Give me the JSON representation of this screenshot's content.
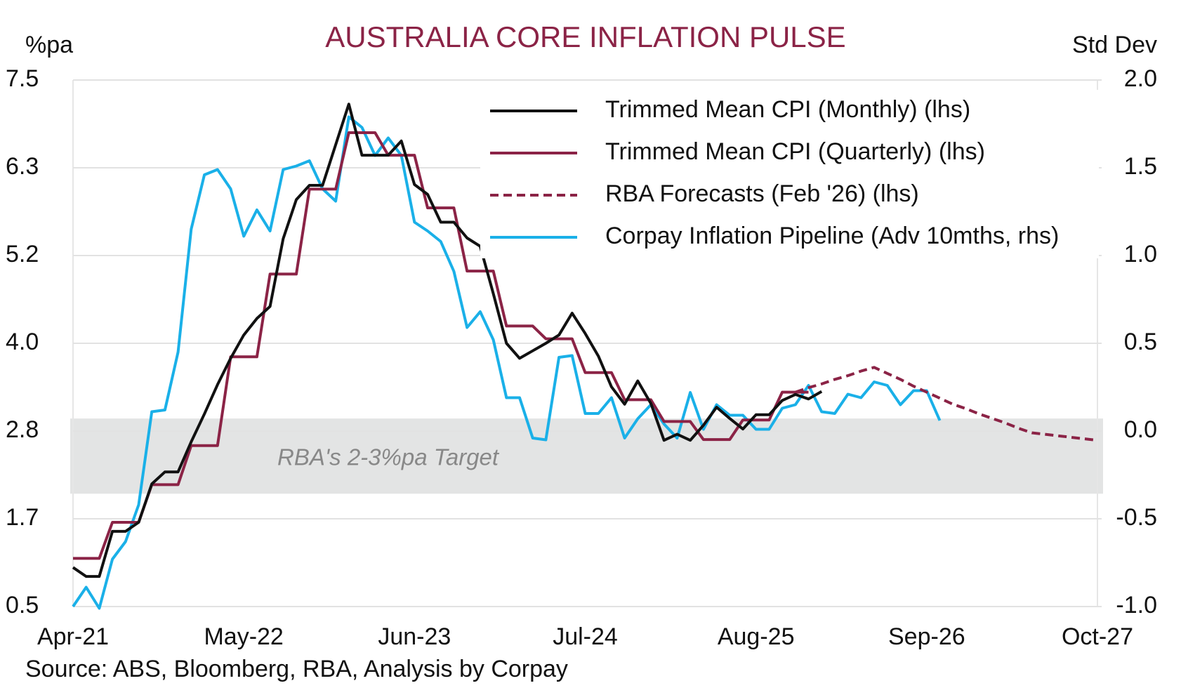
{
  "chart_data": {
    "type": "line",
    "title": "AUSTRALIA CORE INFLATION PULSE",
    "y_label": "%pa",
    "y2_label": "Std Dev",
    "source": "Source: ABS, Bloomberg, RBA, Analysis by Corpay",
    "annotation": "RBA's 2-3%pa Target",
    "target_band": [
      2,
      3
    ],
    "legend": "upper right",
    "grid": true,
    "categories": [
      "Apr-21",
      null,
      null,
      null,
      null,
      null,
      null,
      null,
      null,
      null,
      null,
      null,
      null,
      "May-22",
      null,
      null,
      null,
      null,
      null,
      null,
      null,
      null,
      null,
      null,
      null,
      null,
      "Jun-23",
      null,
      null,
      null,
      null,
      null,
      null,
      null,
      null,
      null,
      null,
      null,
      null,
      "Jul-24",
      null,
      null,
      null,
      null,
      null,
      null,
      null,
      null,
      null,
      null,
      null,
      null,
      "Aug-25",
      null,
      null,
      null,
      null,
      null,
      null,
      null,
      null,
      null,
      null,
      null,
      null,
      "Sep-26",
      null,
      null,
      null,
      null,
      null,
      null,
      null,
      null,
      null,
      null,
      null,
      null,
      "Oct-27"
    ],
    "ylim": [
      0.5,
      7.5
    ],
    "yticks": [
      0.5,
      {
        "value": 1.6667,
        "label": "1.7"
      },
      {
        "value": 2.8333,
        "label": "2.8"
      },
      {
        "value": 4,
        "label": "4.0"
      },
      {
        "value": 5.1667,
        "label": "5.2"
      },
      {
        "value": 6.3333,
        "label": "6.3"
      },
      7.5
    ],
    "y2lim": [
      -1,
      2
    ],
    "y2ticks": [
      {
        "value": -1,
        "label": "-1.0"
      },
      -0.5,
      {
        "value": 0,
        "label": "0.0"
      },
      0.5,
      {
        "value": 1,
        "label": "1.0"
      },
      1.5,
      {
        "value": 2,
        "label": "2.0"
      }
    ],
    "series": [
      {
        "name": "Trimmed Mean CPI (Monthly) (lhs)",
        "color": "#111111",
        "dashed": false,
        "values": [
          1.02,
          0.9,
          0.9,
          1.5,
          1.5,
          1.62,
          2.13,
          2.29,
          2.29,
          2.69,
          3.06,
          3.45,
          3.8,
          4.11,
          4.33,
          4.49,
          5.39,
          5.91,
          6.1,
          6.1,
          6.64,
          7.18,
          6.5,
          6.5,
          6.5,
          6.69,
          6.11,
          5.98,
          5.61,
          5.61,
          5.4,
          5.29,
          4.66,
          4.0,
          3.8,
          3.9,
          4.0,
          4.11,
          4.4,
          4.13,
          3.83,
          3.42,
          3.19,
          3.5,
          3.2,
          2.71,
          2.79,
          2.71,
          2.91,
          3.15,
          3.0,
          2.86,
          3.05,
          3.05,
          3.24,
          3.32,
          3.26,
          3.36,
          null,
          null,
          null,
          null,
          null,
          null,
          null,
          null,
          null,
          null,
          null,
          null,
          null,
          null,
          null,
          null,
          null,
          null,
          null,
          null,
          null
        ]
      },
      {
        "name": "Trimmed Mean CPI (Quarterly) (lhs)",
        "color": "#8b2346",
        "dashed": false,
        "values": [
          1.14,
          1.14,
          1.14,
          1.62,
          1.62,
          1.62,
          2.12,
          2.12,
          2.12,
          2.64,
          2.64,
          2.64,
          3.82,
          3.82,
          3.82,
          4.92,
          4.92,
          4.92,
          6.05,
          6.05,
          6.05,
          6.8,
          6.8,
          6.8,
          6.5,
          6.5,
          6.5,
          5.8,
          5.8,
          5.8,
          4.96,
          4.96,
          4.96,
          4.23,
          4.23,
          4.23,
          4.06,
          4.06,
          4.06,
          3.61,
          3.61,
          3.61,
          3.25,
          3.25,
          3.25,
          2.96,
          2.96,
          2.96,
          2.72,
          2.72,
          2.72,
          2.98,
          2.98,
          2.98,
          3.35,
          3.35,
          3.35,
          null,
          null,
          null,
          null,
          null,
          null,
          null,
          null,
          null,
          null,
          null,
          null,
          null,
          null,
          null,
          null,
          null,
          null,
          null,
          null,
          null,
          null
        ]
      },
      {
        "name": "RBA Forecasts (Feb '26) (lhs)",
        "color": "#8b2346",
        "dashed": true,
        "values": [
          null,
          null,
          null,
          null,
          null,
          null,
          null,
          null,
          null,
          null,
          null,
          null,
          null,
          null,
          null,
          null,
          null,
          null,
          null,
          null,
          null,
          null,
          null,
          null,
          null,
          null,
          null,
          null,
          null,
          null,
          null,
          null,
          null,
          null,
          null,
          null,
          null,
          null,
          null,
          null,
          null,
          null,
          null,
          null,
          null,
          null,
          null,
          null,
          null,
          null,
          null,
          null,
          null,
          null,
          null,
          3.35,
          3.41,
          3.46,
          3.52,
          3.57,
          3.63,
          3.68,
          3.6,
          3.52,
          3.43,
          3.35,
          3.27,
          3.19,
          3.13,
          3.06,
          3.0,
          2.94,
          2.87,
          2.81,
          2.79,
          2.77,
          2.75,
          2.73,
          2.71
        ]
      },
      {
        "name": "Corpay Inflation Pipeline (Adv 10mths, rhs)",
        "color": "#1ab0e8",
        "dashed": false,
        "axis": "y2",
        "values": [
          -1.0,
          -0.89,
          -1.01,
          -0.73,
          -0.63,
          -0.42,
          0.11,
          0.12,
          0.45,
          1.15,
          1.46,
          1.49,
          1.38,
          1.11,
          1.26,
          1.14,
          1.49,
          1.51,
          1.54,
          1.38,
          1.31,
          1.79,
          1.73,
          1.57,
          1.67,
          1.57,
          1.19,
          1.14,
          1.08,
          0.91,
          0.59,
          0.68,
          0.52,
          0.19,
          0.19,
          -0.04,
          -0.05,
          0.42,
          0.43,
          0.1,
          0.1,
          0.19,
          -0.04,
          0.07,
          0.15,
          0.04,
          -0.04,
          0.22,
          0.01,
          0.15,
          0.09,
          0.09,
          0.01,
          0.01,
          0.13,
          0.15,
          0.26,
          0.11,
          0.1,
          0.21,
          0.19,
          0.28,
          0.26,
          0.15,
          0.23,
          0.23,
          0.06,
          null,
          null,
          null,
          null,
          null,
          null,
          null,
          null,
          null,
          null,
          null,
          null
        ]
      }
    ]
  }
}
